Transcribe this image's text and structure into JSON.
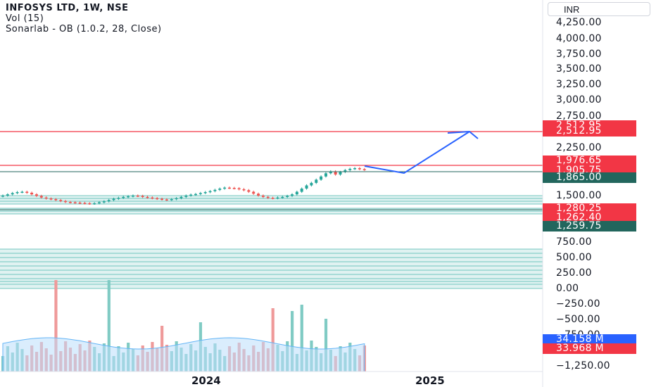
{
  "legend": {
    "symbol": "INFOSYS LTD, 1W, NSE",
    "volume": "Vol (15)",
    "indicator": "Sonarlab - OB (1.0.2, 28, Close)"
  },
  "currency_selector": "INR",
  "price_axis": [
    "4,250.00",
    "4,000.00",
    "3,750.00",
    "3,500.00",
    "3,250.00",
    "3,000.00",
    "2,750.00",
    "2,250.00",
    "1,500.00",
    "750.00",
    "500.00",
    "250.00",
    "0.00",
    "−250.00",
    "−500.00",
    "−750.00",
    "−1,250.00"
  ],
  "price_tags": {
    "t1": "2,512.95",
    "t2": "2,512.95",
    "t3": "1,976.65",
    "t4": "1,905.75",
    "t5": "1,865.00",
    "t6": "1,280.25",
    "t7": "1,262.40",
    "t8": "1,259.75",
    "vol1": "34.158 M",
    "vol2": "33.968 M"
  },
  "time_axis": [
    "2024",
    "2025"
  ],
  "colors": {
    "up": "#26a69a",
    "down": "#ef5350",
    "level_line": "#f23645",
    "ob_zone": "#b2dfdb",
    "projection": "#2962ff",
    "volume_ma": "#90caf9"
  },
  "chart_data": {
    "type": "candlestick",
    "symbol": "INFOSYS LTD",
    "timeframe": "1W",
    "exchange": "NSE",
    "close_series": [
      1500,
      1520,
      1540,
      1555,
      1560,
      1545,
      1520,
      1495,
      1470,
      1455,
      1445,
      1430,
      1415,
      1400,
      1395,
      1390,
      1385,
      1380,
      1375,
      1380,
      1395,
      1410,
      1430,
      1450,
      1465,
      1480,
      1490,
      1500,
      1495,
      1480,
      1470,
      1460,
      1450,
      1440,
      1435,
      1445,
      1460,
      1480,
      1500,
      1515,
      1525,
      1540,
      1555,
      1570,
      1590,
      1610,
      1625,
      1620,
      1615,
      1600,
      1585,
      1560,
      1530,
      1500,
      1480,
      1465,
      1460,
      1470,
      1480,
      1495,
      1520,
      1560,
      1610,
      1660,
      1700,
      1750,
      1800,
      1850,
      1880,
      1830,
      1870,
      1900,
      1920,
      1930,
      1915,
      1906
    ],
    "horizontal_levels": [
      2512.95,
      1976.65,
      1865.0
    ],
    "last_close": 1905.75,
    "volume_labels": [
      "34.158 M",
      "33.968 M"
    ]
  }
}
